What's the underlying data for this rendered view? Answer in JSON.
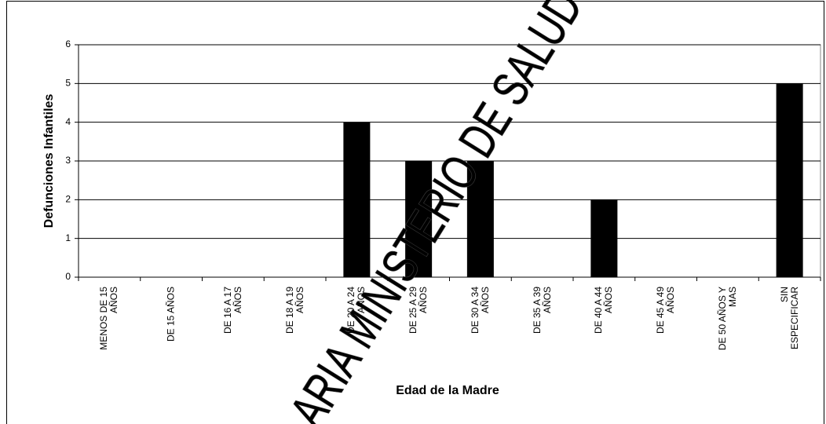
{
  "chart_data": {
    "type": "bar",
    "ylabel": "Defunciones Infantiles",
    "xlabel": "Edad de la Madre",
    "categories": [
      "MENOS DE 15\nAÑOS",
      "DE 15 AÑOS",
      "DE 16 A 17\nAÑOS",
      "DE 18 A 19\nAÑOS",
      "DE 20 A 24\nAÑOS",
      "DE 25 A 29\nAÑOS",
      "DE 30 A 34\nAÑOS",
      "DE 35 A 39\nAÑOS",
      "DE 40 A 44\nAÑOS",
      "DE 45 A 49\nAÑOS",
      "DE 50 AÑOS Y\nMAS",
      "SIN\nESPECIFICAR"
    ],
    "values": [
      0,
      0,
      0,
      0,
      4,
      3,
      3,
      0,
      2,
      0,
      0,
      5
    ],
    "color": "#000000",
    "ylim": [
      0,
      6
    ],
    "yticks": [
      0,
      1,
      2,
      3,
      4,
      5,
      6
    ],
    "grid": true,
    "watermark": "ARIA MINISTERIO DE SALUD"
  }
}
